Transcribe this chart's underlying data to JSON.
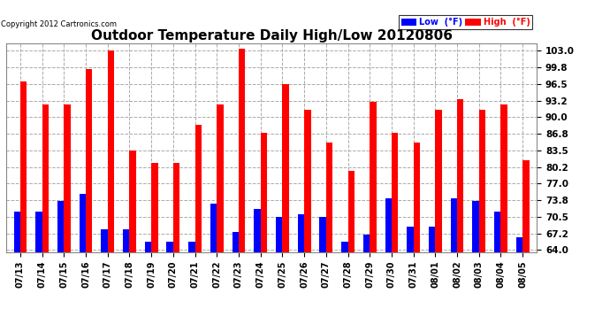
{
  "title": "Outdoor Temperature Daily High/Low 20120806",
  "copyright": "Copyright 2012 Cartronics.com",
  "dates": [
    "07/13",
    "07/14",
    "07/15",
    "07/16",
    "07/17",
    "07/18",
    "07/19",
    "07/20",
    "07/21",
    "07/22",
    "07/23",
    "07/24",
    "07/25",
    "07/26",
    "07/27",
    "07/28",
    "07/29",
    "07/30",
    "07/31",
    "08/01",
    "08/02",
    "08/03",
    "08/04",
    "08/05"
  ],
  "highs": [
    97.0,
    92.5,
    92.5,
    99.5,
    103.0,
    83.5,
    81.0,
    81.0,
    88.5,
    92.5,
    103.5,
    87.0,
    96.5,
    91.5,
    85.0,
    79.5,
    93.0,
    87.0,
    85.0,
    91.5,
    93.5,
    91.5,
    92.5,
    81.5
  ],
  "lows": [
    71.5,
    71.5,
    73.5,
    75.0,
    68.0,
    68.0,
    65.5,
    65.5,
    65.5,
    73.0,
    67.5,
    72.0,
    70.5,
    71.0,
    70.5,
    65.5,
    67.0,
    74.0,
    68.5,
    68.5,
    74.0,
    73.5,
    71.5,
    66.5
  ],
  "high_color": "#ff0000",
  "low_color": "#0000ff",
  "bg_color": "#ffffff",
  "grid_color": "#aaaaaa",
  "title_fontsize": 11,
  "yticks": [
    64.0,
    67.2,
    70.5,
    73.8,
    77.0,
    80.2,
    83.5,
    86.8,
    90.0,
    93.2,
    96.5,
    99.8,
    103.0
  ],
  "ymin": 63.5,
  "ymax": 104.5,
  "legend_low_label": "Low  (°F)",
  "legend_high_label": "High  (°F)"
}
